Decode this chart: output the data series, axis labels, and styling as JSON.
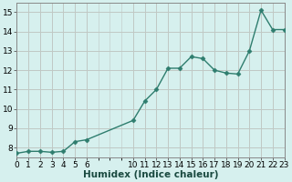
{
  "x": [
    0,
    1,
    2,
    3,
    4,
    5,
    6,
    10,
    11,
    12,
    13,
    14,
    15,
    16,
    17,
    18,
    19,
    20,
    21,
    22,
    23
  ],
  "y": [
    7.7,
    7.8,
    7.8,
    7.75,
    7.8,
    8.3,
    8.4,
    9.4,
    10.4,
    11.0,
    12.1,
    12.1,
    12.7,
    12.6,
    12.0,
    11.85,
    11.8,
    13.0,
    15.1,
    14.1,
    14.1
  ],
  "line_color": "#2e7d6e",
  "marker": "D",
  "marker_size": 2.5,
  "bg_color": "#d6f0ee",
  "grid_color": "#c0c8c4",
  "xlabel": "Humidex (Indice chaleur)",
  "xlim": [
    0,
    23
  ],
  "ylim": [
    7.5,
    15.5
  ],
  "yticks": [
    8,
    9,
    10,
    11,
    12,
    13,
    14,
    15
  ],
  "xticks": [
    0,
    1,
    2,
    3,
    4,
    5,
    6,
    10,
    11,
    12,
    13,
    14,
    15,
    16,
    17,
    18,
    19,
    20,
    21,
    22,
    23
  ],
  "xlabel_fontsize": 7.5,
  "tick_fontsize": 6.5,
  "linewidth": 1.0
}
